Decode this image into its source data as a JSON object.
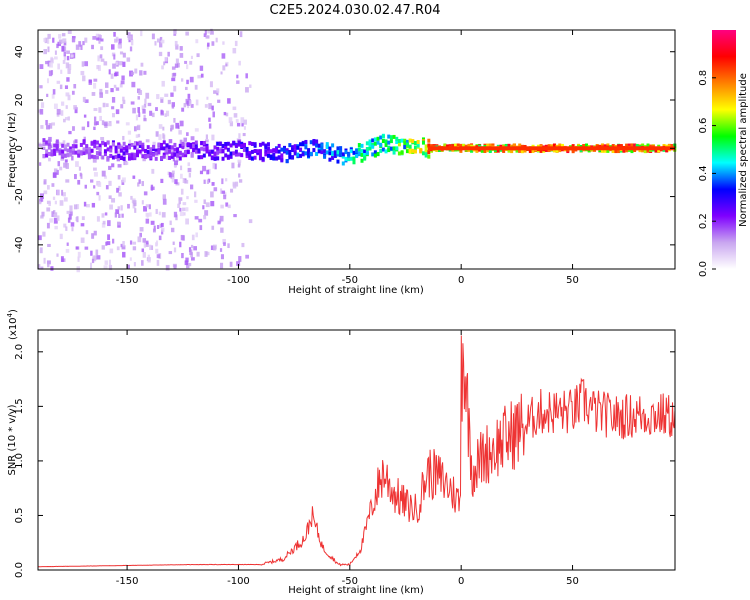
{
  "title": "C2E5.2024.030.02.47.R04",
  "chart_data": [
    {
      "type": "heatmap",
      "title": "C2E5.2024.030.02.47.R04",
      "xlabel": "Height of straight line (km)",
      "ylabel": "Frequency (Hz)",
      "xlim": [
        -190,
        96
      ],
      "ylim": [
        -50,
        49
      ],
      "xticks": [
        -150,
        -100,
        -50,
        0,
        50
      ],
      "xtick_labels": [
        "-150",
        "-100",
        "-50",
        "0",
        "50"
      ],
      "yticks": [
        -40,
        -20,
        0,
        20,
        40
      ],
      "ytick_labels": [
        "-40",
        "-20",
        "0",
        "20",
        "40"
      ],
      "colorbar": {
        "label": "Normalized spectral amplitude",
        "range": [
          0,
          1
        ],
        "ticks": [
          0.0,
          0.2,
          0.4,
          0.6,
          0.8
        ],
        "tick_labels": [
          "0.0",
          "0.2",
          "0.4",
          "0.6",
          "0.8"
        ],
        "colormap": [
          "#ffffff",
          "#c9a6f0",
          "#7f00ff",
          "#0000ff",
          "#00ffff",
          "#00ff00",
          "#ffff00",
          "#ff8000",
          "#ff0000",
          "#ff0080"
        ]
      },
      "signal_track": {
        "description_points_x": [
          -175,
          -150,
          -125,
          -100,
          -80,
          -65,
          -55,
          -45,
          -35,
          -25,
          -15,
          0,
          25,
          50,
          96
        ],
        "center_freq_hz": [
          0,
          -1,
          -1,
          -1,
          -2,
          0,
          -3,
          -2,
          2,
          1,
          0,
          0,
          0,
          0,
          0
        ],
        "amplitude": [
          0.2,
          0.25,
          0.25,
          0.3,
          0.35,
          0.4,
          0.45,
          0.5,
          0.55,
          0.6,
          0.8,
          0.85,
          0.85,
          0.85,
          0.85
        ]
      },
      "grid": false
    },
    {
      "type": "line",
      "xlabel": "Height of straight line (km)",
      "ylabel": "SNR (10 * v/v)",
      "y_multiplier_label": "(x10",
      "y_multiplier_exp": "4",
      "xlim": [
        -190,
        96
      ],
      "ylim": [
        0,
        2.2
      ],
      "xticks": [
        -150,
        -100,
        -50,
        0,
        50
      ],
      "xtick_labels": [
        "-150",
        "-100",
        "-50",
        "0",
        "50"
      ],
      "yticks": [
        0.0,
        0.5,
        1.0,
        1.5,
        2.0
      ],
      "ytick_labels": [
        "0.0",
        "0.5",
        "1.0",
        "1.5",
        "2.0"
      ],
      "color": "#ee3333",
      "envelope_x": [
        -190,
        -120,
        -90,
        -80,
        -70,
        -67,
        -62,
        -55,
        -50,
        -45,
        -40,
        -35,
        -30,
        -25,
        -20,
        -15,
        -10,
        -5,
        0,
        0.5,
        5,
        10,
        20,
        30,
        35,
        40,
        50,
        55,
        60,
        70,
        80,
        90,
        96
      ],
      "envelope_y": [
        0.03,
        0.05,
        0.05,
        0.1,
        0.3,
        0.5,
        0.2,
        0.05,
        0.05,
        0.2,
        0.6,
        0.9,
        0.7,
        0.6,
        0.55,
        0.9,
        0.85,
        0.75,
        0.6,
        2.15,
        0.9,
        1.05,
        1.2,
        1.35,
        1.45,
        1.45,
        1.45,
        1.55,
        1.45,
        1.4,
        1.42,
        1.42,
        1.4
      ],
      "grid": false
    }
  ]
}
